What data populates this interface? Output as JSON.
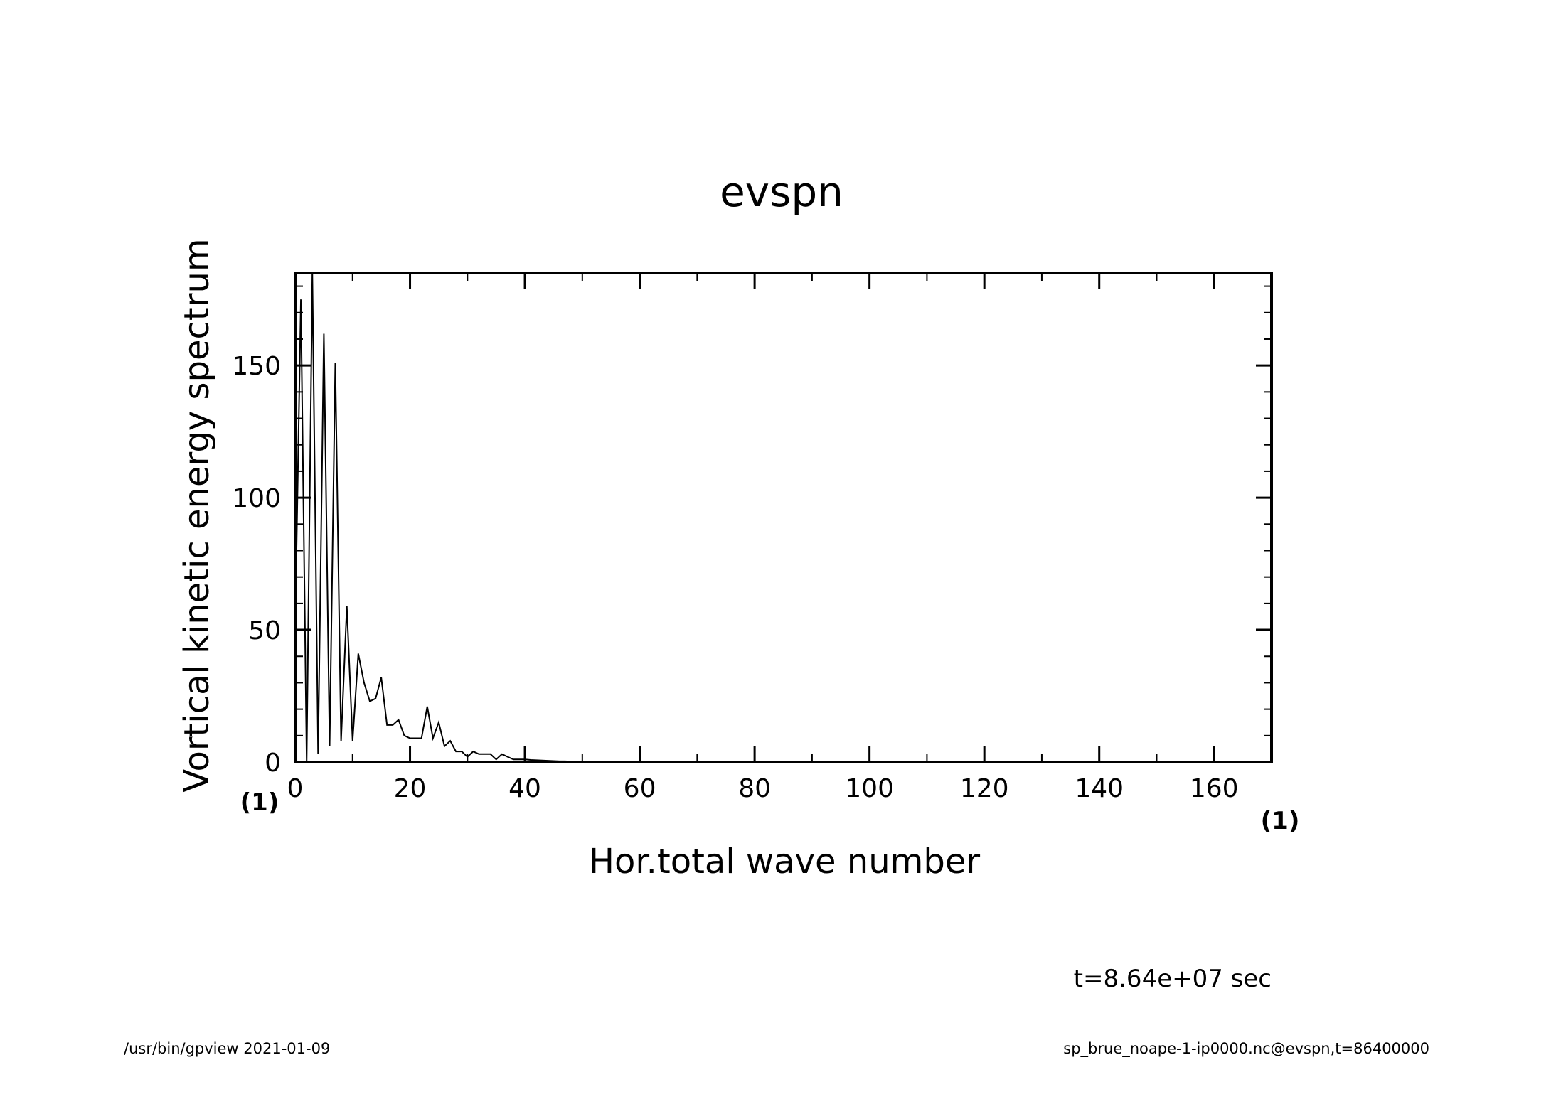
{
  "footer": {
    "left": "/usr/bin/gpview  2021-01-09",
    "right": "sp_brue_noape-1-ip0000.nc@evspn,t=86400000"
  },
  "time_label": "t=8.64e+07 sec",
  "chart_data": {
    "type": "line",
    "title": "evspn",
    "xlabel": "Hor.total wave number",
    "ylabel": "Vortical kinetic energy spectrum",
    "x_unit": "(1)",
    "y_unit": "(1)",
    "xlim": [
      0,
      170
    ],
    "ylim": [
      0,
      185
    ],
    "x_ticks": [
      0,
      20,
      40,
      60,
      80,
      100,
      120,
      140,
      160
    ],
    "y_ticks": [
      0,
      50,
      100,
      150
    ],
    "x_minor_step": 10,
    "y_minor_step": 10,
    "grid": false,
    "series": [
      {
        "x": [
          0,
          1,
          2,
          3,
          4,
          5,
          6,
          7,
          8,
          9,
          10,
          11,
          12,
          13,
          14,
          15,
          16,
          17,
          18,
          19,
          20,
          21,
          22,
          23,
          24,
          25,
          26,
          27,
          28,
          29,
          30,
          31,
          32,
          33,
          34,
          35,
          36,
          37,
          38,
          39,
          40,
          41,
          42,
          43,
          44,
          45,
          46,
          47,
          48,
          49,
          50,
          52,
          54,
          56,
          58,
          60,
          65,
          70,
          80,
          90,
          100,
          110,
          120,
          130,
          140,
          150,
          160,
          170
        ],
        "y": [
          50,
          175,
          0,
          185,
          3,
          162,
          6,
          151,
          8,
          59,
          8,
          41,
          30,
          23,
          24,
          32,
          14,
          14,
          16,
          10,
          9,
          9,
          9,
          21,
          9,
          15,
          6,
          8,
          4,
          4,
          2,
          4,
          3,
          3,
          3,
          1,
          3,
          2,
          1,
          1,
          1,
          0.8,
          0.7,
          0.6,
          0.5,
          0.4,
          0.3,
          0.3,
          0.2,
          0.2,
          0.2,
          0.1,
          0.1,
          0.1,
          0.05,
          0.05,
          0.02,
          0.01,
          0,
          0,
          0,
          0,
          0,
          0,
          0,
          0,
          0,
          0
        ]
      }
    ]
  }
}
